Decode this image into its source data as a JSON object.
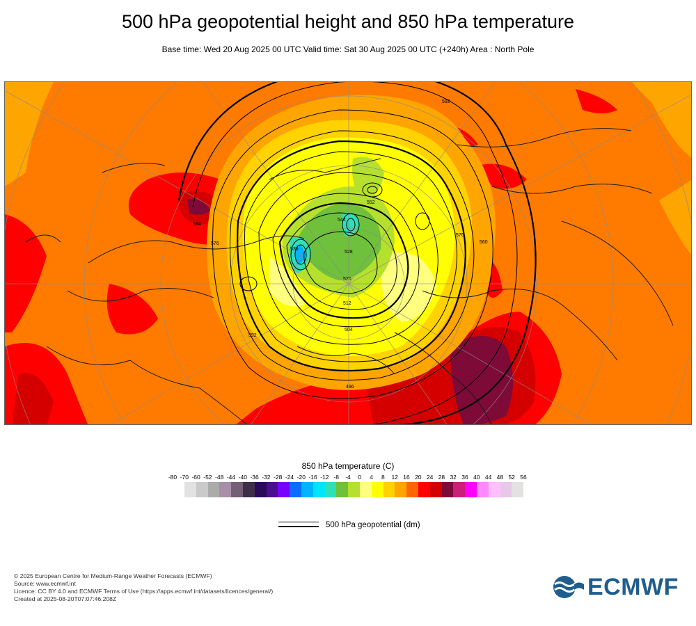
{
  "header": {
    "title": "500 hPa geopotential height and 850 hPa temperature",
    "subtitle": "Base time: Wed 20 Aug 2025 00 UTC Valid time: Sat 30 Aug 2025 00 UTC (+240h) Area : North Pole"
  },
  "map": {
    "contour_labels": [
      "592",
      "576",
      "560",
      "552",
      "544",
      "536",
      "528",
      "520",
      "512",
      "504",
      "496",
      "576",
      "584",
      "592"
    ]
  },
  "legend": {
    "title": "850 hPa temperature (C)",
    "ticks": [
      "-80",
      "-70",
      "-60",
      "-52",
      "-48",
      "-44",
      "-40",
      "-36",
      "-32",
      "-28",
      "-24",
      "-20",
      "-16",
      "-12",
      "-8",
      "-4",
      "0",
      "4",
      "8",
      "12",
      "16",
      "20",
      "24",
      "28",
      "32",
      "36",
      "40",
      "44",
      "48",
      "52",
      "56"
    ],
    "colors": [
      "#e2e2e2",
      "#cacaca",
      "#ababab",
      "#a88fa8",
      "#745f74",
      "#3f2e4a",
      "#2b0b59",
      "#4c0e8f",
      "#7a00ff",
      "#0d6bff",
      "#00b3ff",
      "#00e5ff",
      "#2ee0b8",
      "#6fc03a",
      "#b5e02e",
      "#ffff80",
      "#ffff00",
      "#ffd200",
      "#ffa500",
      "#ff6600",
      "#ff0000",
      "#d40000",
      "#7e0a38",
      "#cc1f7a",
      "#ff00ff",
      "#ff88ff",
      "#ffbfff",
      "#e8c8e8",
      "#e2e2e2"
    ],
    "contour_key_label": "500 hPa geopotential (dm)"
  },
  "footer": {
    "lines": [
      "© 2025 European Centre for Medium-Range Weather Forecasts (ECMWF)",
      "Source: www.ecmwf.int",
      "Licence: CC BY 4.0 and ECMWF Terms of Use (https://apps.ecmwf.int/datasets/licences/general/)",
      "Created at 2025-08-20T07:07:46.208Z"
    ]
  },
  "logo": {
    "text": "ECMWF",
    "color": "#1f5d8e"
  }
}
